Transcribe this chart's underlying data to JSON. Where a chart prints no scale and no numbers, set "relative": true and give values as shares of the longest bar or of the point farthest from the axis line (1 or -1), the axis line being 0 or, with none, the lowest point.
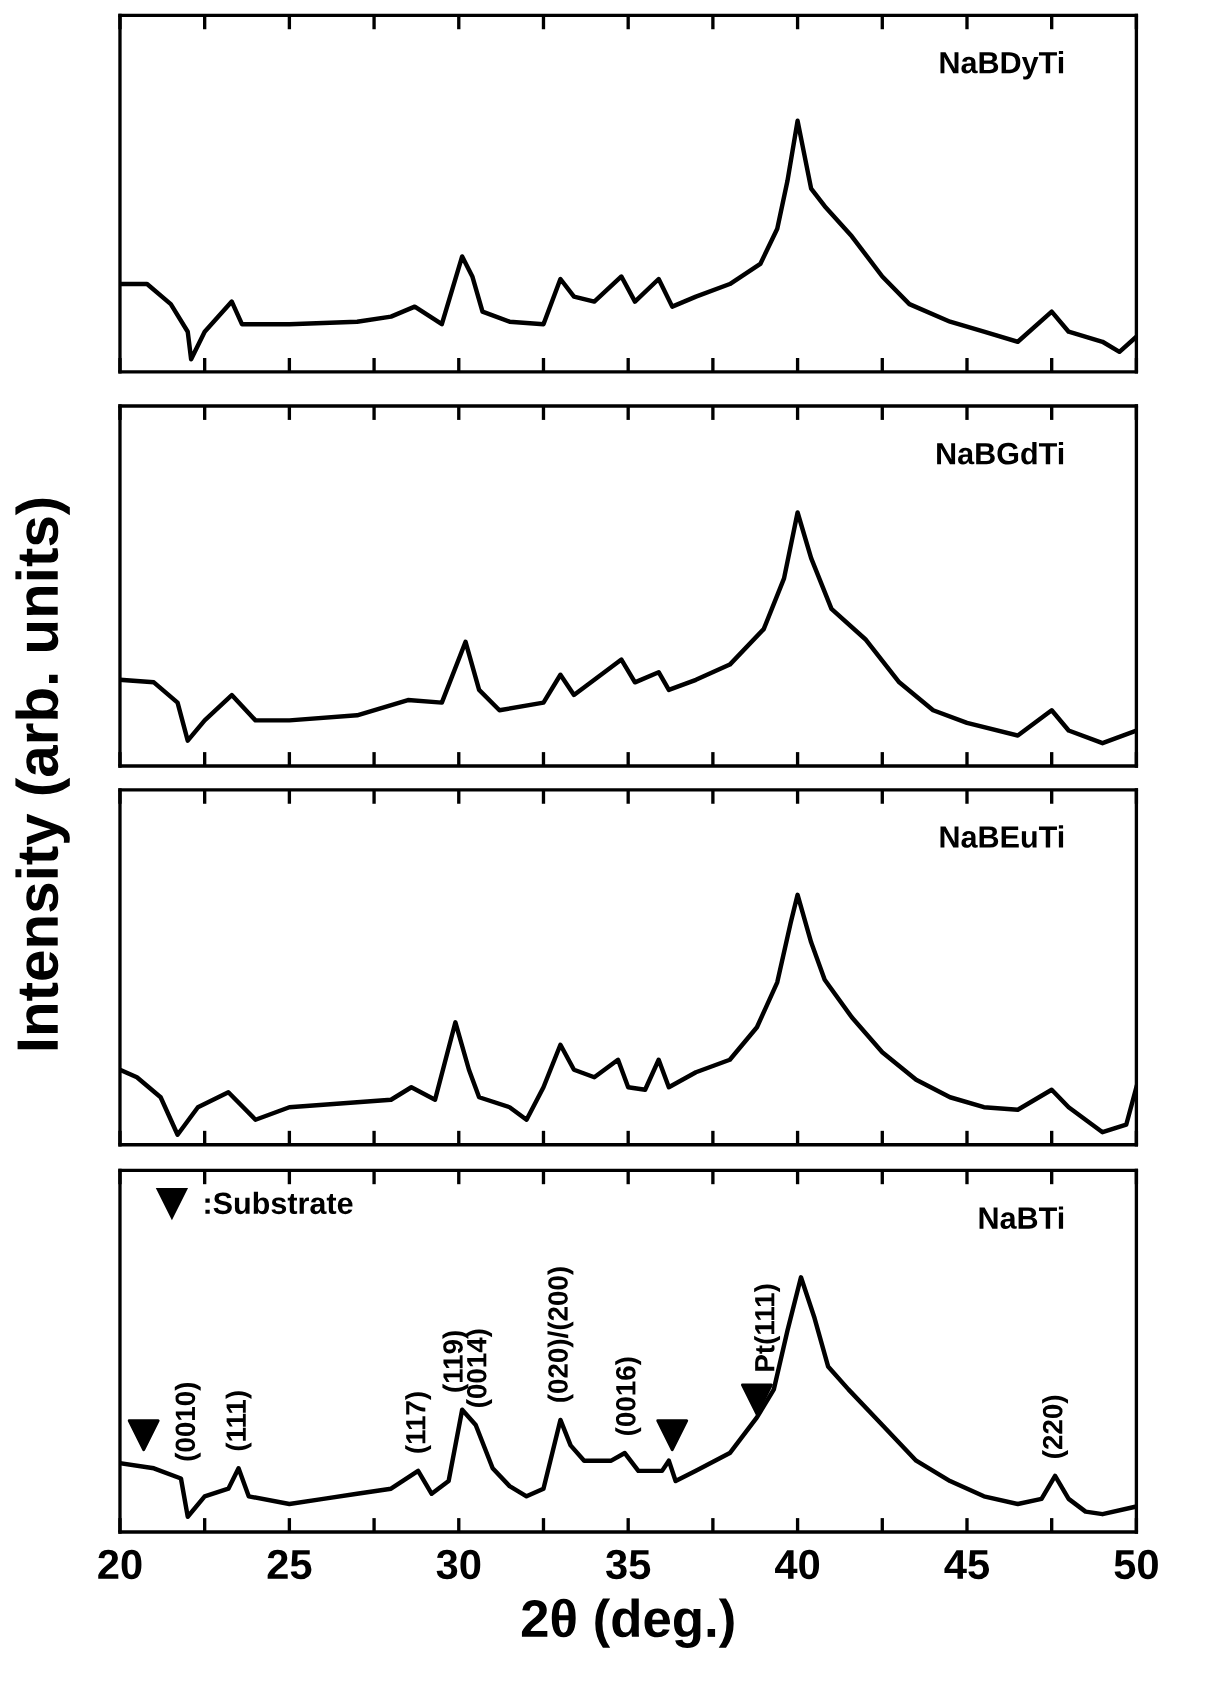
{
  "chart_data": [
    {
      "type": "line",
      "relative": true,
      "ylabel": "Intensity (arb. units)",
      "xlim": [
        20,
        50
      ],
      "tick_labels": false,
      "xticks": [
        {
          "value": 20,
          "label": null
        },
        {
          "value": 22.5,
          "label": null
        },
        {
          "value": 25,
          "label": null
        },
        {
          "value": 27.5,
          "label": null
        },
        {
          "value": 30,
          "label": null
        },
        {
          "value": 32.5,
          "label": null
        },
        {
          "value": 35,
          "label": null
        },
        {
          "value": 37.5,
          "label": null
        },
        {
          "value": 40,
          "label": null
        },
        {
          "value": 42.5,
          "label": null
        },
        {
          "value": 45,
          "label": null
        },
        {
          "value": 47.5,
          "label": null
        },
        {
          "value": 50,
          "label": null
        }
      ],
      "x": [
        20,
        20.8,
        21.5,
        22.0,
        22.1,
        22.5,
        23.3,
        23.6,
        25,
        27,
        28,
        28.7,
        29.5,
        30.1,
        30.4,
        30.7,
        31.5,
        32.5,
        33.0,
        33.4,
        34,
        34.8,
        35.2,
        35.9,
        36.3,
        37,
        38,
        38.9,
        39.4,
        39.7,
        40.0,
        40.4,
        40.8,
        41.6,
        42.5,
        43.3,
        44.5,
        45.5,
        46.5,
        47.5,
        48,
        49,
        49.5,
        50
      ],
      "series": [
        {
          "name": "NaBDyTi",
          "color": "#000000",
          "values": [
            0.35,
            0.35,
            0.27,
            0.16,
            0.05,
            0.16,
            0.28,
            0.19,
            0.19,
            0.2,
            0.22,
            0.26,
            0.19,
            0.46,
            0.38,
            0.24,
            0.2,
            0.19,
            0.37,
            0.3,
            0.28,
            0.38,
            0.28,
            0.37,
            0.26,
            0.3,
            0.35,
            0.43,
            0.57,
            0.76,
            1.0,
            0.73,
            0.66,
            0.54,
            0.38,
            0.27,
            0.2,
            0.16,
            0.12,
            0.24,
            0.16,
            0.12,
            0.08,
            0.14
          ]
        }
      ]
    },
    {
      "type": "line",
      "relative": true,
      "xlim": [
        20,
        50
      ],
      "tick_labels": false,
      "xticks": [
        {
          "value": 20,
          "label": null
        },
        {
          "value": 22.5,
          "label": null
        },
        {
          "value": 25,
          "label": null
        },
        {
          "value": 27.5,
          "label": null
        },
        {
          "value": 30,
          "label": null
        },
        {
          "value": 32.5,
          "label": null
        },
        {
          "value": 35,
          "label": null
        },
        {
          "value": 37.5,
          "label": null
        },
        {
          "value": 40,
          "label": null
        },
        {
          "value": 42.5,
          "label": null
        },
        {
          "value": 45,
          "label": null
        },
        {
          "value": 47.5,
          "label": null
        },
        {
          "value": 50,
          "label": null
        }
      ],
      "x": [
        20,
        21,
        21.7,
        22.0,
        22.5,
        23.3,
        24,
        25,
        27,
        28.5,
        29.5,
        30.2,
        30.6,
        31.2,
        32.5,
        33.0,
        33.4,
        34.8,
        35.2,
        35.9,
        36.2,
        37,
        38,
        39,
        39.6,
        40.0,
        40.4,
        41,
        42,
        43,
        44,
        45,
        46.5,
        47.5,
        48,
        49,
        50
      ],
      "series": [
        {
          "name": "NaBGdTi",
          "color": "#000000",
          "values": [
            0.34,
            0.33,
            0.25,
            0.1,
            0.18,
            0.28,
            0.18,
            0.18,
            0.2,
            0.26,
            0.25,
            0.49,
            0.3,
            0.22,
            0.25,
            0.36,
            0.28,
            0.42,
            0.33,
            0.37,
            0.3,
            0.34,
            0.4,
            0.54,
            0.74,
            1.0,
            0.82,
            0.62,
            0.5,
            0.33,
            0.22,
            0.17,
            0.12,
            0.22,
            0.14,
            0.09,
            0.14
          ]
        }
      ]
    },
    {
      "type": "line",
      "relative": true,
      "xlim": [
        20,
        50
      ],
      "tick_labels": false,
      "xticks": [
        {
          "value": 20,
          "label": null
        },
        {
          "value": 22.5,
          "label": null
        },
        {
          "value": 25,
          "label": null
        },
        {
          "value": 27.5,
          "label": null
        },
        {
          "value": 30,
          "label": null
        },
        {
          "value": 32.5,
          "label": null
        },
        {
          "value": 35,
          "label": null
        },
        {
          "value": 37.5,
          "label": null
        },
        {
          "value": 40,
          "label": null
        },
        {
          "value": 42.5,
          "label": null
        },
        {
          "value": 45,
          "label": null
        },
        {
          "value": 47.5,
          "label": null
        },
        {
          "value": 50,
          "label": null
        }
      ],
      "x": [
        20,
        20.5,
        21.2,
        21.7,
        22.3,
        23.2,
        24,
        25,
        27,
        28,
        28.6,
        29.3,
        29.9,
        30.3,
        30.6,
        31.5,
        32.0,
        32.5,
        33.0,
        33.4,
        34,
        34.7,
        35.0,
        35.5,
        35.9,
        36.2,
        37,
        38,
        38.8,
        39.4,
        39.8,
        40.0,
        40.4,
        40.8,
        41.6,
        42.5,
        43.5,
        44.5,
        45.5,
        46.5,
        47.5,
        48,
        49,
        49.7,
        50
      ],
      "series": [
        {
          "name": "NaBEuTi",
          "color": "#000000",
          "values": [
            0.3,
            0.27,
            0.19,
            0.04,
            0.15,
            0.21,
            0.1,
            0.15,
            0.17,
            0.18,
            0.23,
            0.18,
            0.49,
            0.3,
            0.19,
            0.15,
            0.1,
            0.23,
            0.4,
            0.3,
            0.27,
            0.34,
            0.23,
            0.22,
            0.34,
            0.23,
            0.29,
            0.34,
            0.47,
            0.65,
            0.89,
            1.0,
            0.81,
            0.66,
            0.51,
            0.37,
            0.26,
            0.19,
            0.15,
            0.14,
            0.22,
            0.15,
            0.05,
            0.08,
            0.23
          ]
        }
      ]
    },
    {
      "type": "line",
      "relative": true,
      "xlabel": "2θ (deg.)",
      "xlim": [
        20,
        50
      ],
      "tick_labels": "x",
      "legend": "top left",
      "xticks": [
        20,
        {
          "value": 22.5,
          "label": null
        },
        25,
        {
          "value": 27.5,
          "label": null
        },
        30,
        {
          "value": 32.5,
          "label": null
        },
        35,
        {
          "value": 37.5,
          "label": null
        },
        40,
        {
          "value": 42.5,
          "label": null
        },
        45,
        {
          "value": 47.5,
          "label": null
        },
        50
      ],
      "x": [
        20,
        21,
        21.8,
        22.0,
        22.5,
        23.2,
        23.5,
        23.8,
        25,
        26,
        27,
        28,
        28.8,
        29.2,
        29.7,
        30.1,
        30.5,
        31,
        31.5,
        32,
        32.5,
        33.0,
        33.3,
        33.7,
        34.5,
        34.9,
        35.3,
        36.0,
        36.2,
        36.4,
        37,
        38,
        38.8,
        39.3,
        39.7,
        40.1,
        40.5,
        40.9,
        41.5,
        42.5,
        43.5,
        44.5,
        45.5,
        46.5,
        47.2,
        47.6,
        48,
        48.5,
        49,
        50
      ],
      "series": [
        {
          "name": "NaBTi",
          "color": "#000000",
          "values": [
            0.27,
            0.25,
            0.21,
            0.06,
            0.14,
            0.17,
            0.25,
            0.14,
            0.11,
            0.13,
            0.15,
            0.17,
            0.24,
            0.15,
            0.2,
            0.48,
            0.42,
            0.25,
            0.18,
            0.14,
            0.17,
            0.44,
            0.34,
            0.28,
            0.28,
            0.31,
            0.24,
            0.24,
            0.28,
            0.2,
            0.24,
            0.31,
            0.45,
            0.56,
            0.79,
            1.0,
            0.84,
            0.65,
            0.56,
            0.42,
            0.28,
            0.2,
            0.14,
            0.11,
            0.13,
            0.22,
            0.13,
            0.08,
            0.07,
            0.1
          ]
        },
        {
          "name": ":Substrate",
          "type": "scatter",
          "marker": "triangle",
          "color": "#000000",
          "x": [
            20.7,
            36.3,
            38.8
          ],
          "values": [
            0.38,
            0.38,
            0.52
          ]
        }
      ],
      "annotations": [
        {
          "text": "(0010)",
          "x": 22.0,
          "y": 0.21
        },
        {
          "text": "(111)",
          "x": 23.5,
          "y": 0.25
        },
        {
          "text": "(117)",
          "x": 28.8,
          "y": 0.24
        },
        {
          "text": "(119)",
          "x": 29.9,
          "y": 0.48
        },
        {
          "text": "(0014)",
          "x": 30.6,
          "y": 0.42
        },
        {
          "text": "(020)/(200)",
          "x": 33.0,
          "y": 0.44
        },
        {
          "text": "(0016)",
          "x": 35.0,
          "y": 0.31
        },
        {
          "text": "Pt(111)",
          "x": 39.1,
          "y": 0.56
        },
        {
          "text": "(220)",
          "x": 47.6,
          "y": 0.22
        }
      ]
    }
  ]
}
